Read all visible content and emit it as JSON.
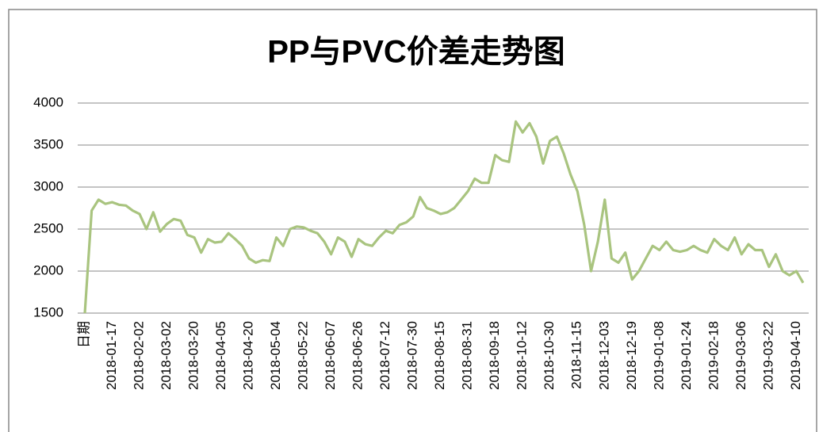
{
  "chart_data": {
    "type": "line",
    "title": "PP与PVC价差走势图",
    "categories": [
      "日期",
      null,
      null,
      null,
      "2018-01-17",
      null,
      null,
      null,
      "2018-02-02",
      null,
      null,
      null,
      "2018-03-02",
      null,
      null,
      null,
      "2018-03-20",
      null,
      null,
      null,
      "2018-04-05",
      null,
      null,
      null,
      "2018-04-20",
      null,
      null,
      null,
      "2018-05-04",
      null,
      null,
      null,
      "2018-05-22",
      null,
      null,
      null,
      "2018-06-07",
      null,
      null,
      null,
      "2018-06-26",
      null,
      null,
      null,
      "2018-07-12",
      null,
      null,
      null,
      "2018-07-30",
      null,
      null,
      null,
      "2018-08-15",
      null,
      null,
      null,
      "2018-08-31",
      null,
      null,
      null,
      "2018-09-18",
      null,
      null,
      null,
      "2018-10-12",
      null,
      null,
      null,
      "2018-10-30",
      null,
      null,
      null,
      "2018-11-15",
      null,
      null,
      null,
      "2018-12-03",
      null,
      null,
      null,
      "2018-12-19",
      null,
      null,
      null,
      "2019-01-08",
      null,
      null,
      null,
      "2019-01-24",
      null,
      null,
      null,
      "2019-02-18",
      null,
      null,
      null,
      "2019-03-06",
      null,
      null,
      null,
      "2019-03-22",
      null,
      null,
      null,
      "2019-04-10",
      null
    ],
    "values": [
      1500,
      2720,
      2850,
      2800,
      2820,
      2790,
      2780,
      2720,
      2680,
      2500,
      2700,
      2470,
      2560,
      2620,
      2600,
      2430,
      2400,
      2220,
      2380,
      2340,
      2350,
      2450,
      2380,
      2300,
      2150,
      2100,
      2130,
      2120,
      2400,
      2300,
      2500,
      2530,
      2520,
      2480,
      2450,
      2350,
      2200,
      2400,
      2350,
      2170,
      2380,
      2320,
      2300,
      2400,
      2480,
      2450,
      2550,
      2580,
      2650,
      2880,
      2750,
      2720,
      2680,
      2700,
      2750,
      2850,
      2950,
      3100,
      3050,
      3050,
      3380,
      3320,
      3300,
      3780,
      3650,
      3760,
      3600,
      3280,
      3550,
      3600,
      3400,
      3150,
      2950,
      2550,
      2000,
      2350,
      2850,
      2150,
      2100,
      2220,
      1900,
      2000,
      2150,
      2300,
      2250,
      2350,
      2250,
      2230,
      2250,
      2300,
      2250,
      2220,
      2380,
      2300,
      2250,
      2400,
      2200,
      2320,
      2250,
      2250,
      2050,
      2200,
      2000,
      1950,
      2000,
      1860
    ],
    "color": "#a9c47f",
    "ylim": [
      1500,
      4000
    ],
    "yticks": [
      1500,
      2000,
      2500,
      3000,
      3500,
      4000
    ],
    "grid": true
  }
}
